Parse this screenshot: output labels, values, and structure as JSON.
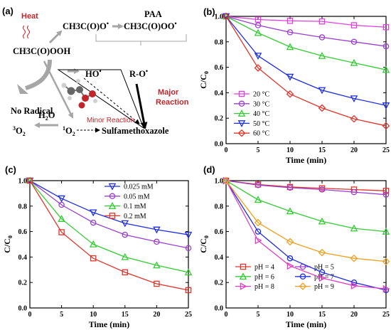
{
  "scheme": {
    "panel_label": "(a)",
    "heat": "Heat",
    "paa_molecule": "CH3C(O)OOH",
    "acetoxyl": "CH3C(O)O",
    "paa": "PAA",
    "peroxyl": "CH3C(O)OO",
    "hydroxyl": "HO",
    "alkoxyl": "R-O",
    "no_radical": "No Radical",
    "minor": "Minor Reaction",
    "major_1": "Major",
    "major_2": "Reaction",
    "water": "H2O",
    "triplet_oxygen": "3O2",
    "singlet_oxygen": "1O2",
    "target": "Sulfamethoxazole",
    "colors": {
      "arrow_gray": "#a6a6a6",
      "highlight_red": "#c0262b",
      "molecule_gray": "#555555",
      "molecule_red": "#c0262b"
    }
  },
  "chart_data": [
    {
      "panel": "(b)",
      "type": "line",
      "xlabel": "Time (min)",
      "ylabel": "C/C0",
      "xlim": [
        0,
        25
      ],
      "ylim": [
        0.0,
        1.0
      ],
      "xticks": [
        0,
        5,
        10,
        15,
        20,
        25
      ],
      "yticks": [
        0.0,
        0.2,
        0.4,
        0.6,
        0.8,
        1.0
      ],
      "grid": false,
      "legend_position": "bottom-left",
      "x": [
        0,
        5,
        10,
        15,
        20,
        25
      ],
      "series": [
        {
          "name": "20 °C",
          "marker": "square",
          "color": "#e040e0",
          "values": [
            1.0,
            0.975,
            0.965,
            0.96,
            0.93,
            0.915
          ]
        },
        {
          "name": "30 °C",
          "marker": "circle",
          "color": "#9a3fd0",
          "values": [
            1.0,
            0.93,
            0.875,
            0.835,
            0.8,
            0.765
          ]
        },
        {
          "name": "40 °C",
          "marker": "triangle-up",
          "color": "#33cc33",
          "values": [
            1.0,
            0.87,
            0.76,
            0.69,
            0.635,
            0.58
          ]
        },
        {
          "name": "50 °C",
          "marker": "triangle-down",
          "color": "#1f2ee0",
          "values": [
            1.0,
            0.69,
            0.525,
            0.42,
            0.355,
            0.3
          ]
        },
        {
          "name": "60 °C",
          "marker": "diamond",
          "color": "#e0342b",
          "values": [
            1.0,
            0.595,
            0.39,
            0.28,
            0.195,
            0.14
          ]
        }
      ]
    },
    {
      "panel": "(c)",
      "type": "line",
      "xlabel": "Time (min)",
      "ylabel": "C/C0",
      "xlim": [
        0,
        25
      ],
      "ylim": [
        0.0,
        1.0
      ],
      "xticks": [
        0,
        5,
        10,
        15,
        20,
        25
      ],
      "yticks": [
        0.0,
        0.2,
        0.4,
        0.6,
        0.8,
        1.0
      ],
      "grid": false,
      "legend_position": "top-right",
      "x": [
        0,
        5,
        10,
        15,
        20,
        25
      ],
      "series": [
        {
          "name": "0.025 mM",
          "marker": "triangle-down",
          "color": "#1f2ee0",
          "values": [
            1.0,
            0.86,
            0.75,
            0.665,
            0.615,
            0.575
          ]
        },
        {
          "name": "0.05 mM",
          "marker": "circle",
          "color": "#9a3fd0",
          "values": [
            1.0,
            0.81,
            0.67,
            0.575,
            0.52,
            0.47
          ]
        },
        {
          "name": "0.1 mM",
          "marker": "triangle-up",
          "color": "#33cc33",
          "values": [
            1.0,
            0.7,
            0.5,
            0.4,
            0.335,
            0.28
          ]
        },
        {
          "name": "0.2 mM",
          "marker": "square",
          "color": "#e0342b",
          "values": [
            1.0,
            0.595,
            0.39,
            0.28,
            0.19,
            0.14
          ]
        }
      ]
    },
    {
      "panel": "(d)",
      "type": "line",
      "xlabel": "Time (min)",
      "ylabel": "C/C0",
      "xlim": [
        0,
        25
      ],
      "ylim": [
        0.0,
        1.0
      ],
      "xticks": [
        0,
        5,
        10,
        15,
        20,
        25
      ],
      "yticks": [
        0.0,
        0.2,
        0.4,
        0.6,
        0.8,
        1.0
      ],
      "grid": false,
      "legend_position": "bottom-left",
      "x": [
        0,
        5,
        10,
        15,
        20,
        25
      ],
      "series": [
        {
          "name": "pH = 4",
          "marker": "square",
          "color": "#e0342b",
          "values": [
            1.0,
            0.97,
            0.95,
            0.94,
            0.93,
            0.92
          ]
        },
        {
          "name": "pH = 5",
          "marker": "circle",
          "color": "#9a3fd0",
          "values": [
            1.0,
            0.965,
            0.945,
            0.93,
            0.91,
            0.89
          ]
        },
        {
          "name": "pH = 6",
          "marker": "triangle-up",
          "color": "#33cc33",
          "values": [
            1.0,
            0.85,
            0.76,
            0.68,
            0.625,
            0.6
          ]
        },
        {
          "name": "pH = 7",
          "marker": "circle",
          "color": "#1f2ee0",
          "values": [
            1.0,
            0.6,
            0.39,
            0.28,
            0.2,
            0.14
          ]
        },
        {
          "name": "pH = 8",
          "marker": "triangle-right",
          "color": "#e040c0",
          "values": [
            1.0,
            0.53,
            0.33,
            0.235,
            0.175,
            0.15
          ]
        },
        {
          "name": "pH = 9",
          "marker": "diamond",
          "color": "#f0a020",
          "values": [
            1.0,
            0.67,
            0.52,
            0.435,
            0.39,
            0.365
          ]
        }
      ]
    }
  ]
}
